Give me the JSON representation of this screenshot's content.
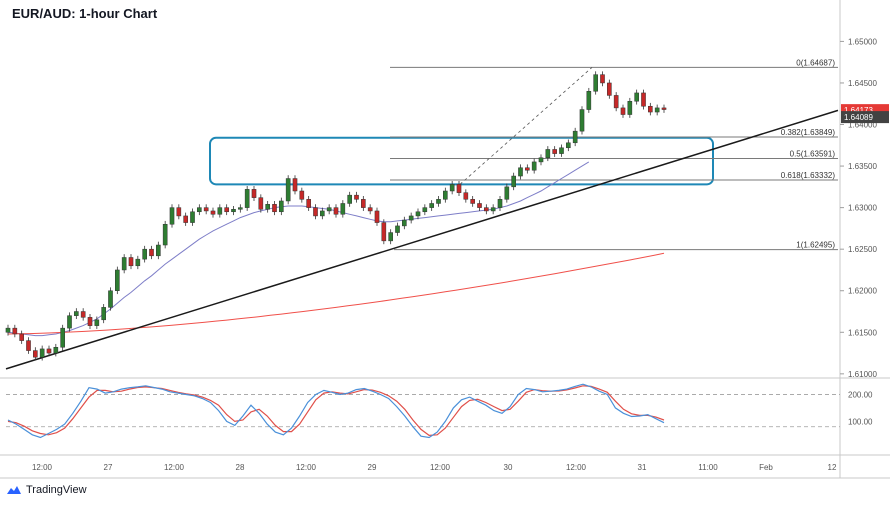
{
  "chart_title": "EUR/AUD: 1-hour Chart",
  "brand": "TradingView",
  "colors": {
    "up": "#2e7d32",
    "down": "#c62828",
    "ma_fast": "#7e7ec8",
    "ma_slow": "#f0504a",
    "zone": "#1e88b6",
    "stoch_k": "#4a90d9",
    "stoch_d": "#e0504a"
  },
  "chart_data": {
    "type": "line",
    "title": "EUR/AUD: 1-hour Chart",
    "y_ticks": [
      "1.65000",
      "1.64500",
      "1.64000",
      "1.63500",
      "1.63000",
      "1.62500",
      "1.62000",
      "1.61500",
      "1.61000"
    ],
    "ylim": [
      1.6095,
      1.6545
    ],
    "x_ticks": [
      "12:00",
      "27",
      "12:00",
      "28",
      "12:00",
      "29",
      "12:00",
      "30",
      "12:00",
      "31",
      "11:00",
      "Feb",
      "12"
    ],
    "price_labels": [
      {
        "label": "1.64173",
        "value": 1.64173,
        "color": "#e53935"
      },
      {
        "label": "1.64089",
        "value": 1.64089,
        "color": "#424242"
      }
    ],
    "fibonacci": [
      {
        "label": "0(1.64687)",
        "value": 1.64687
      },
      {
        "label": "0.382(1.63849)",
        "value": 1.63849
      },
      {
        "label": "0.5(1.63591)",
        "value": 1.63591
      },
      {
        "label": "0.618(1.63332)",
        "value": 1.63332
      },
      {
        "label": "1(1.62495)",
        "value": 1.62495
      }
    ],
    "resistance_zone": {
      "top": 1.6384,
      "bottom": 1.6328
    },
    "close": [
      1.6155,
      1.6148,
      1.614,
      1.6128,
      1.612,
      1.613,
      1.6125,
      1.6132,
      1.6155,
      1.617,
      1.6175,
      1.6168,
      1.6158,
      1.6165,
      1.618,
      1.62,
      1.6225,
      1.624,
      1.623,
      1.6238,
      1.625,
      1.6242,
      1.6255,
      1.628,
      1.63,
      1.629,
      1.6282,
      1.6295,
      1.63,
      1.6296,
      1.6292,
      1.63,
      1.6295,
      1.6298,
      1.63,
      1.6322,
      1.6312,
      1.6298,
      1.6304,
      1.6295,
      1.6308,
      1.6335,
      1.632,
      1.631,
      1.63,
      1.629,
      1.6296,
      1.63,
      1.6292,
      1.6305,
      1.6315,
      1.631,
      1.63,
      1.6296,
      1.6282,
      1.626,
      1.627,
      1.6278,
      1.6285,
      1.629,
      1.6295,
      1.63,
      1.6305,
      1.631,
      1.632,
      1.6328,
      1.6318,
      1.631,
      1.6305,
      1.63,
      1.6296,
      1.63,
      1.631,
      1.6325,
      1.6338,
      1.6348,
      1.6345,
      1.6355,
      1.636,
      1.637,
      1.6365,
      1.6372,
      1.6378,
      1.6392,
      1.6418,
      1.644,
      1.646,
      1.645,
      1.6435,
      1.642,
      1.6412,
      1.6428,
      1.6438,
      1.6422,
      1.6415,
      1.642,
      1.6418
    ],
    "ma_fast": [
      1.615,
      1.6149,
      1.6148,
      1.6147,
      1.6146,
      1.6146,
      1.6147,
      1.6148,
      1.615,
      1.6152,
      1.6155,
      1.6158,
      1.6162,
      1.6166,
      1.6172,
      1.6178,
      1.6185,
      1.6192,
      1.6198,
      1.6205,
      1.6212,
      1.6218,
      1.6225,
      1.6232,
      1.6238,
      1.6244,
      1.625,
      1.6256,
      1.6262,
      1.6267,
      1.6272,
      1.6276,
      1.628,
      1.6284,
      1.6288,
      1.6291,
      1.6294,
      1.6296,
      1.6298,
      1.63,
      1.6301,
      1.6302,
      1.6302,
      1.6302,
      1.6301,
      1.63,
      1.6299,
      1.6298,
      1.6296,
      1.6294,
      1.6292,
      1.629,
      1.6288,
      1.6286,
      1.6284,
      1.6283,
      1.6283,
      1.6284,
      1.6285,
      1.6286,
      1.6287,
      1.6288,
      1.6289,
      1.629,
      1.6291,
      1.6292,
      1.6293,
      1.6294,
      1.6295,
      1.6296,
      1.6297,
      1.6298,
      1.63,
      1.6302,
      1.6305,
      1.6308,
      1.6312,
      1.6316,
      1.632,
      1.6325,
      1.633,
      1.6335,
      1.634,
      1.6345,
      1.635,
      1.6355
    ]
  },
  "stochastic": {
    "y_ticks": [
      "200.00",
      "100.00"
    ],
    "ylim": [
      -25,
      250
    ],
    "levels": [
      200,
      80
    ],
    "k": [
      105,
      90,
      70,
      50,
      40,
      55,
      70,
      90,
      130,
      175,
      225,
      220,
      205,
      210,
      220,
      225,
      228,
      232,
      226,
      220,
      210,
      205,
      200,
      195,
      185,
      170,
      140,
      100,
      85,
      120,
      160,
      130,
      90,
      60,
      50,
      75,
      120,
      170,
      200,
      215,
      208,
      200,
      205,
      218,
      222,
      212,
      200,
      185,
      155,
      120,
      80,
      45,
      40,
      60,
      100,
      150,
      180,
      190,
      175,
      160,
      140,
      130,
      155,
      200,
      222,
      218,
      210,
      212,
      215,
      220,
      230,
      238,
      228,
      212,
      200,
      150,
      130,
      118,
      120,
      125,
      110,
      95
    ],
    "d": [
      100,
      95,
      82,
      65,
      55,
      50,
      58,
      75,
      110,
      150,
      190,
      215,
      215,
      210,
      212,
      220,
      226,
      228,
      225,
      222,
      215,
      208,
      202,
      198,
      190,
      178,
      160,
      125,
      100,
      105,
      135,
      145,
      120,
      85,
      62,
      62,
      90,
      135,
      180,
      205,
      210,
      205,
      202,
      210,
      218,
      216,
      208,
      195,
      175,
      145,
      105,
      70,
      48,
      50,
      75,
      115,
      155,
      178,
      182,
      170,
      155,
      140,
      145,
      175,
      208,
      218,
      214,
      212,
      213,
      217,
      224,
      232,
      230,
      220,
      208,
      175,
      145,
      128,
      122,
      122,
      116,
      105
    ]
  }
}
